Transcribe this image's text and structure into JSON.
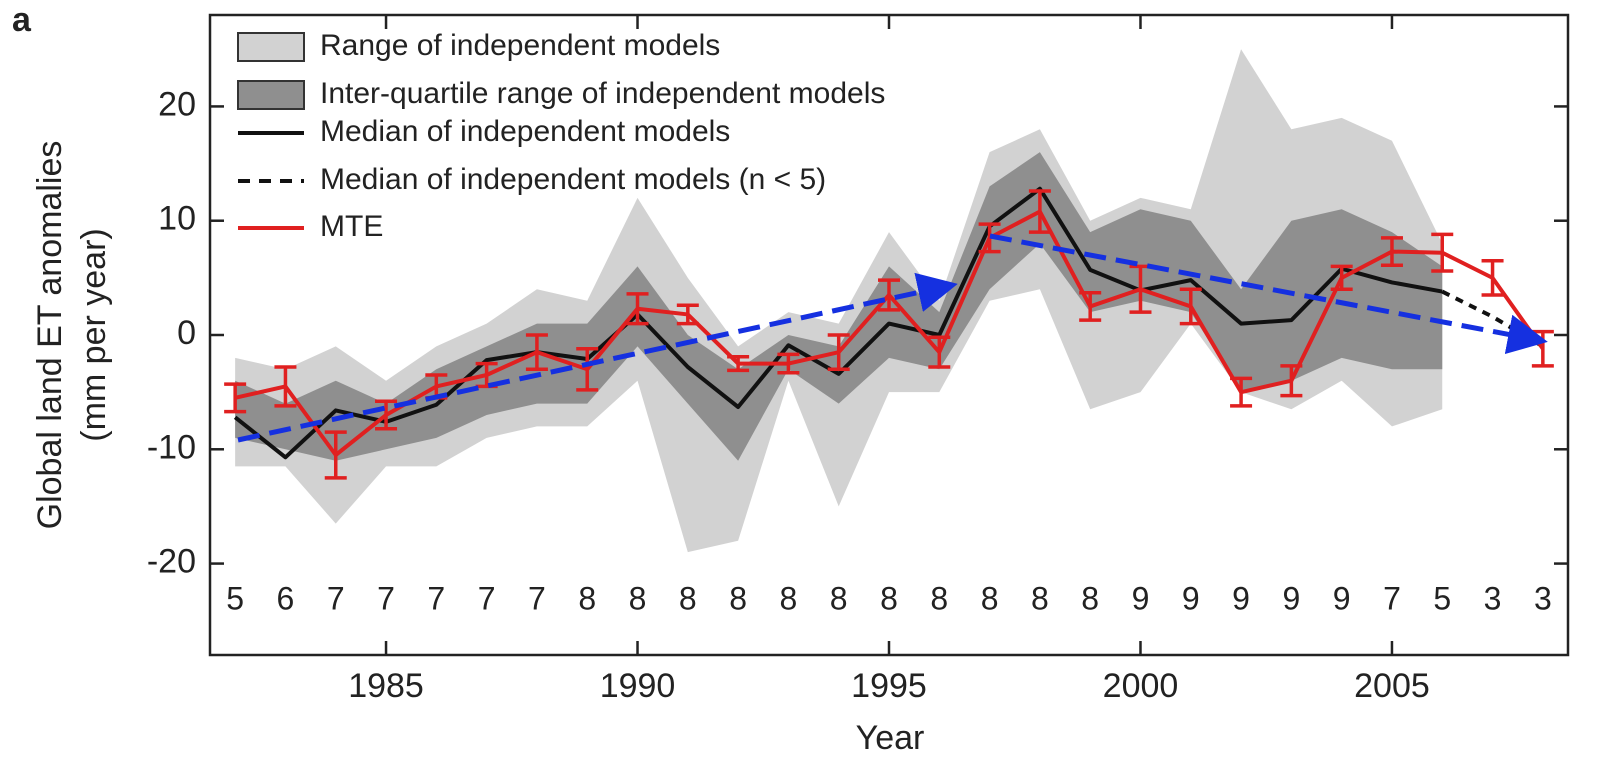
{
  "chart_data": {
    "type": "line",
    "panel_label": "a",
    "xlabel": "Year",
    "ylabel": [
      "Global land ET anomalies",
      "(mm per year)"
    ],
    "x": [
      1982,
      1983,
      1984,
      1985,
      1986,
      1987,
      1988,
      1989,
      1990,
      1991,
      1992,
      1993,
      1994,
      1995,
      1996,
      1997,
      1998,
      1999,
      2000,
      2001,
      2002,
      2003,
      2004,
      2005,
      2006,
      2007,
      2008
    ],
    "counts": [
      5,
      6,
      7,
      7,
      7,
      7,
      7,
      8,
      8,
      8,
      8,
      8,
      8,
      8,
      8,
      8,
      8,
      8,
      9,
      9,
      9,
      9,
      9,
      7,
      5,
      3,
      3
    ],
    "xlim": [
      1981.5,
      2008.5
    ],
    "xticks": [
      1985,
      1990,
      1995,
      2000,
      2005
    ],
    "ylim": [
      -28,
      28
    ],
    "yticks": [
      -20,
      -10,
      0,
      10,
      20
    ],
    "series": [
      {
        "name": "Range of independent models",
        "type": "band",
        "color": "#d2d2d2",
        "low": [
          -11.5,
          -11.5,
          -16.5,
          -11.5,
          -11.5,
          -9,
          -8,
          -8,
          -4,
          -19,
          -18,
          -4,
          -15,
          -5,
          -5,
          3,
          4,
          -6.5,
          -5,
          1,
          -5,
          -6.5,
          -4,
          -8,
          -6.5,
          null,
          null
        ],
        "high": [
          -2,
          -3,
          -1,
          -4,
          -1,
          1,
          4,
          3,
          12,
          5,
          -1,
          2,
          1,
          9,
          3,
          16,
          18,
          10,
          12,
          11,
          25,
          18,
          19,
          17,
          8,
          null,
          null
        ]
      },
      {
        "name": "Inter-quartile range of independent models",
        "type": "band",
        "color": "#8f8f8f",
        "low": [
          -9,
          -10,
          -11,
          -10,
          -9,
          -7,
          -6,
          -6,
          -1,
          -6,
          -11,
          -3,
          -6,
          -2,
          -3,
          4,
          8,
          2,
          3,
          2,
          -5,
          -4,
          -2,
          -3,
          -3,
          null,
          null
        ],
        "high": [
          -4,
          -6,
          -4,
          -6,
          -3,
          -1,
          1,
          1,
          6,
          0,
          -3,
          0,
          -1,
          6,
          2,
          13,
          16,
          9,
          11,
          10,
          4,
          10,
          11,
          9,
          6,
          null,
          null
        ]
      },
      {
        "name": "Median of independent models",
        "type": "line",
        "color": "#111111",
        "dash": false,
        "values": [
          -7.2,
          -10.7,
          -6.6,
          -7.6,
          -6.1,
          -2.2,
          -1.5,
          -2.1,
          1.8,
          -2.8,
          -6.3,
          -0.9,
          -3.4,
          1.0,
          0,
          9.5,
          12.8,
          5.7,
          3.9,
          4.8,
          1.0,
          1.3,
          5.8,
          4.6,
          3.8,
          null,
          null
        ]
      },
      {
        "name": "Median of independent models (n < 5)",
        "type": "line",
        "color": "#111111",
        "dash": true,
        "values": [
          null,
          null,
          null,
          null,
          null,
          null,
          null,
          null,
          null,
          null,
          null,
          null,
          null,
          null,
          null,
          null,
          null,
          null,
          null,
          null,
          null,
          null,
          null,
          null,
          3.8,
          1.6,
          -1.0
        ]
      },
      {
        "name": "MTE",
        "type": "errorline",
        "color": "#e02020",
        "values": [
          -5.5,
          -4.5,
          -10.5,
          -7,
          -4.5,
          -3.5,
          -1.5,
          -3,
          2.3,
          1.8,
          -2.5,
          -2.5,
          -1.5,
          3.5,
          -1.5,
          8.5,
          10.8,
          2.5,
          4,
          2.5,
          -5,
          -4,
          5,
          7.3,
          7.2,
          5,
          -1.2
        ],
        "errors": [
          1.2,
          1.7,
          2,
          1.2,
          1,
          1,
          1.5,
          1.8,
          1.3,
          0.8,
          0.6,
          0.8,
          1.5,
          1.3,
          1.3,
          1.2,
          1.8,
          1.2,
          2,
          1.5,
          1.2,
          1.3,
          1,
          1.2,
          1.6,
          1.5,
          1.5
        ]
      }
    ]
  }
}
